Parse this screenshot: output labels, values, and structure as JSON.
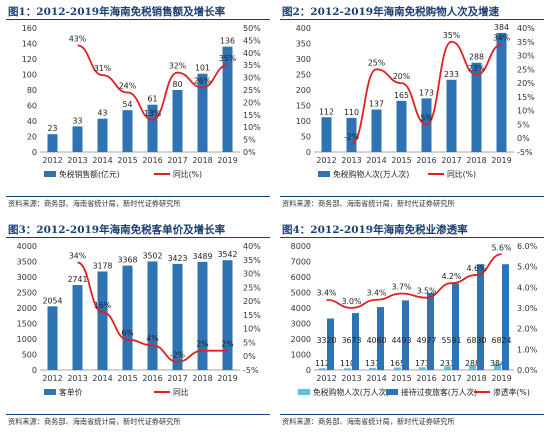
{
  "source_text": "资料来源：商务部、海南省统计局，新时代证券研究所",
  "colors": {
    "bar": "#2e74b5",
    "bar2": "#5bc0de",
    "line": "#e02020",
    "title": "#1a3f73"
  },
  "chart_data": [
    {
      "type": "bar",
      "title": "图1：2012-2019年海南免税销售额及增长率",
      "categories": [
        "2012",
        "2013",
        "2014",
        "2015",
        "2016",
        "2017",
        "2018",
        "2019"
      ],
      "series": [
        {
          "name": "免税销售额(亿元)",
          "type": "bar",
          "axis": "left",
          "values": [
            23,
            33,
            43,
            54,
            61,
            80,
            101,
            136
          ]
        },
        {
          "name": "同比(%)",
          "type": "line",
          "axis": "right",
          "values": [
            null,
            43,
            31,
            24,
            13,
            32,
            26,
            35
          ]
        }
      ],
      "data_labels": {
        "bar": [
          "23",
          "33",
          "43",
          "54",
          "61",
          "80",
          "101",
          "136"
        ],
        "line": [
          "",
          "43%",
          "31%",
          "24%",
          "13%",
          "32%",
          "26%",
          "35%"
        ]
      },
      "ylim": [
        0,
        160
      ],
      "yticks": [
        0,
        20,
        40,
        60,
        80,
        100,
        120,
        140,
        160
      ],
      "y2lim": [
        0,
        50
      ],
      "y2ticks": [
        "0%",
        "5%",
        "10%",
        "15%",
        "20%",
        "25%",
        "30%",
        "35%",
        "40%",
        "45%",
        "50%"
      ],
      "legend": [
        "免税销售额(亿元)",
        "同比(%)"
      ],
      "legend_position": "bottom",
      "grid": false
    },
    {
      "type": "bar",
      "title": "图2：2012-2019年海南免税购物人次及增速",
      "categories": [
        "2012",
        "2013",
        "2014",
        "2015",
        "2016",
        "2017",
        "2018",
        "2019"
      ],
      "series": [
        {
          "name": "免税购物人次(万人次)",
          "type": "bar",
          "axis": "left",
          "values": [
            112,
            110,
            137,
            165,
            173,
            233,
            288,
            384
          ]
        },
        {
          "name": "同比(%)",
          "type": "line",
          "axis": "right",
          "values": [
            null,
            -2,
            25,
            20,
            5,
            35,
            23,
            34
          ]
        }
      ],
      "data_labels": {
        "bar": [
          "112",
          "110",
          "137",
          "165",
          "173",
          "233",
          "288",
          "384"
        ],
        "line": [
          "",
          "-2%",
          "25%",
          "20%",
          "5%",
          "35%",
          "23%",
          "34%"
        ]
      },
      "ylim": [
        0,
        400
      ],
      "yticks": [
        0,
        50,
        100,
        150,
        200,
        250,
        300,
        350,
        400
      ],
      "y2lim": [
        -5,
        40
      ],
      "y2ticks": [
        "-5%",
        "0%",
        "5%",
        "10%",
        "15%",
        "20%",
        "25%",
        "30%",
        "35%",
        "40%"
      ],
      "legend": [
        "免税购物人次(万人次)",
        "同比(%)"
      ],
      "legend_position": "bottom",
      "grid": false
    },
    {
      "type": "bar",
      "title": "图3：2012-2019年海南免税客单价及增长率",
      "categories": [
        "2012",
        "2013",
        "2014",
        "2015",
        "2016",
        "2017",
        "2018",
        "2019"
      ],
      "series": [
        {
          "name": "客单价",
          "type": "bar",
          "axis": "left",
          "values": [
            2054,
            2741,
            3178,
            3368,
            3502,
            3423,
            3489,
            3542
          ]
        },
        {
          "name": "同比",
          "type": "line",
          "axis": "right",
          "values": [
            null,
            34,
            16,
            6,
            4,
            -2,
            2,
            2
          ]
        }
      ],
      "data_labels": {
        "bar": [
          "2054",
          "2741",
          "3178",
          "3368",
          "3502",
          "3423",
          "3489",
          "3542"
        ],
        "line": [
          "",
          "34%",
          "16%",
          "6%",
          "4%",
          "-2%",
          "2%",
          "2%"
        ]
      },
      "ylim": [
        0,
        4000
      ],
      "yticks": [
        0,
        500,
        1000,
        1500,
        2000,
        2500,
        3000,
        3500,
        4000
      ],
      "y2lim": [
        -5,
        40
      ],
      "y2ticks": [
        "-5%",
        "0%",
        "5%",
        "10%",
        "15%",
        "20%",
        "25%",
        "30%",
        "35%",
        "40%"
      ],
      "legend": [
        "客单价",
        "同比"
      ],
      "legend_position": "bottom",
      "grid": false
    },
    {
      "type": "bar",
      "title": "图4：2012-2019年海南免税业渗透率",
      "categories": [
        "2012",
        "2013",
        "2014",
        "2015",
        "2016",
        "2017",
        "2018",
        "2019"
      ],
      "series": [
        {
          "name": "免税购物人次(万人次)",
          "type": "bar",
          "axis": "left",
          "values": [
            112,
            110,
            137,
            165,
            173,
            233,
            288,
            384
          ]
        },
        {
          "name": "接待过夜旅客(万人次)",
          "type": "bar",
          "axis": "left",
          "values": [
            3320,
            3673,
            4060,
            4493,
            4977,
            5591,
            6830,
            6824
          ]
        },
        {
          "name": "渗透率(%)",
          "type": "line",
          "axis": "right",
          "values": [
            3.4,
            3.0,
            3.4,
            3.7,
            3.5,
            4.2,
            4.6,
            5.6
          ]
        }
      ],
      "data_labels": {
        "bar": [
          "112",
          "110",
          "137",
          "165",
          "173",
          "233",
          "288",
          "384"
        ],
        "bar2": [
          "3320",
          "3673",
          "4060",
          "4493",
          "4977",
          "5591",
          "6830",
          "6824"
        ],
        "line": [
          "3.4%",
          "3.0%",
          "3.4%",
          "3.7%",
          "3.5%",
          "4.2%",
          "4.6%",
          "5.6%"
        ]
      },
      "ylim": [
        0,
        8000
      ],
      "yticks": [
        0,
        1000,
        2000,
        3000,
        4000,
        5000,
        6000,
        7000,
        8000
      ],
      "y2lim": [
        0,
        6
      ],
      "y2ticks": [
        "0.0%",
        "1.0%",
        "2.0%",
        "3.0%",
        "4.0%",
        "5.0%",
        "6.0%"
      ],
      "legend": [
        "免税购物人次(万人次)",
        "接待过夜旅客(万人次)",
        "渗透率(%)"
      ],
      "legend_position": "bottom",
      "grid": false
    }
  ]
}
